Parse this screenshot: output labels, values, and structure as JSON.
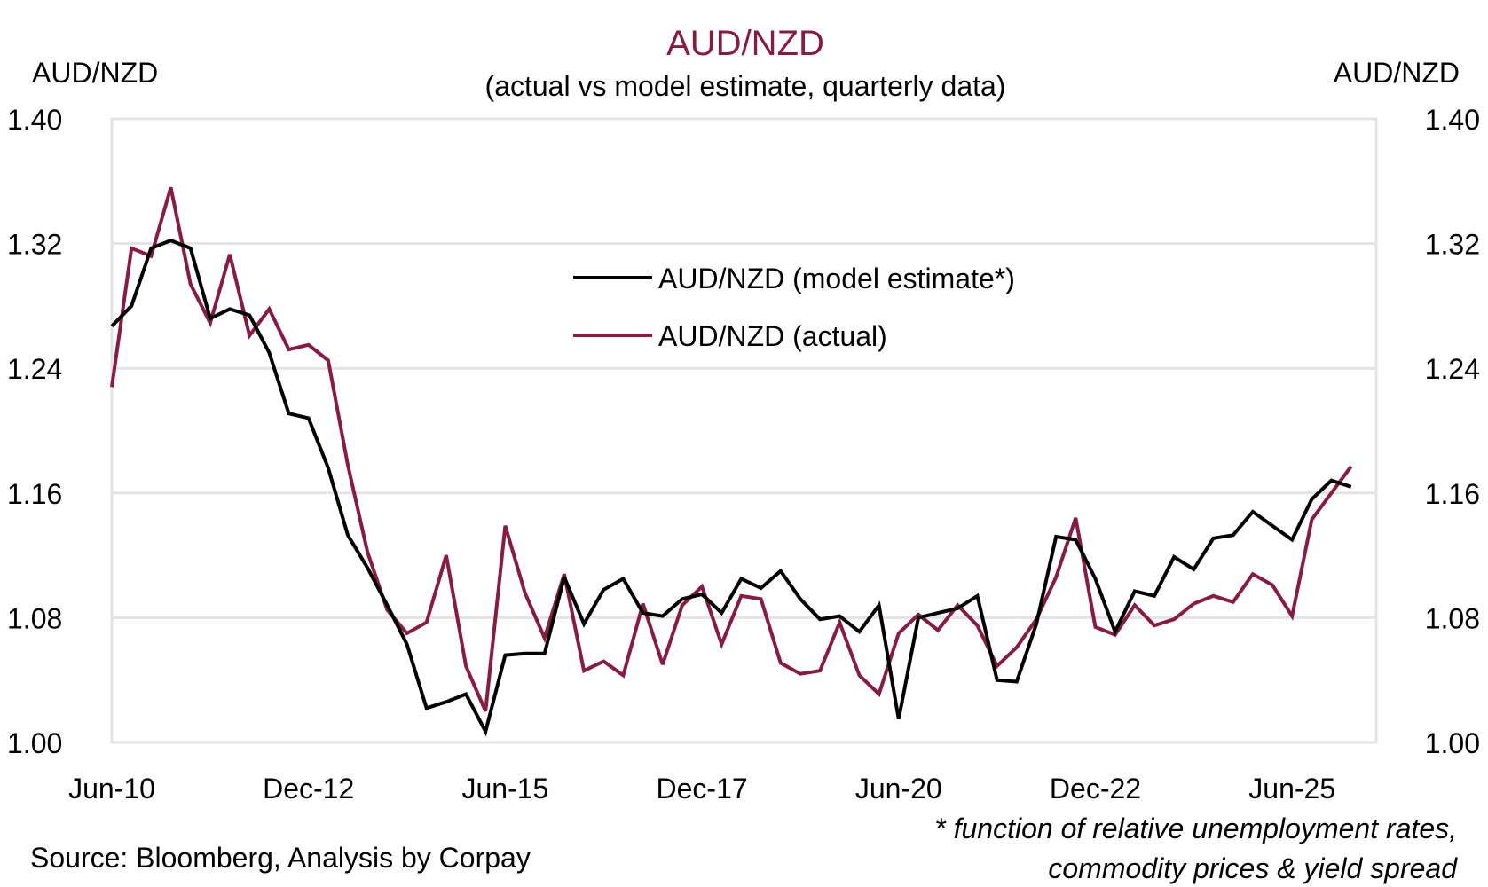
{
  "chart_data": {
    "type": "line",
    "title": "AUD/NZD",
    "subtitle": "(actual vs model estimate, quarterly data)",
    "ylabel_left": "AUD/NZD",
    "ylabel_right": "AUD/NZD",
    "xlabel": "",
    "ylim": [
      1.0,
      1.4
    ],
    "yticks": [
      "1.00",
      "1.08",
      "1.16",
      "1.24",
      "1.32",
      "1.40"
    ],
    "ytick_values": [
      1.0,
      1.08,
      1.16,
      1.24,
      1.32,
      1.4
    ],
    "xtick_labels": [
      "Jun-10",
      "Dec-12",
      "Jun-15",
      "Dec-17",
      "Jun-20",
      "Dec-22",
      "Jun-25"
    ],
    "xtick_indices": [
      0,
      10,
      20,
      30,
      40,
      50,
      60
    ],
    "x_start": "Jun-10",
    "x_frequency": "quarterly",
    "x_count": 64,
    "grid": true,
    "legend_position": "upper-center",
    "series": [
      {
        "name": "AUD/NZD (model estimate*)",
        "color": "#000000",
        "values": [
          1.267,
          1.28,
          1.317,
          1.322,
          1.317,
          1.272,
          1.278,
          1.274,
          1.25,
          1.211,
          1.208,
          1.176,
          1.133,
          1.112,
          1.088,
          1.063,
          1.022,
          1.026,
          1.031,
          1.007,
          1.056,
          1.057,
          1.057,
          1.106,
          1.076,
          1.098,
          1.105,
          1.083,
          1.081,
          1.092,
          1.095,
          1.083,
          1.105,
          1.099,
          1.11,
          1.092,
          1.079,
          1.081,
          1.071,
          1.088,
          1.015,
          1.08,
          1.083,
          1.086,
          1.094,
          1.04,
          1.039,
          1.076,
          1.132,
          1.13,
          1.105,
          1.071,
          1.097,
          1.094,
          1.119,
          1.111,
          1.131,
          1.133,
          1.148,
          1.139,
          1.13,
          1.156,
          1.168,
          1.164
        ]
      },
      {
        "name": "AUD/NZD (actual)",
        "color": "#8B1A42",
        "values": [
          1.228,
          1.317,
          1.312,
          1.356,
          1.294,
          1.269,
          1.313,
          1.261,
          1.278,
          1.252,
          1.255,
          1.245,
          1.178,
          1.122,
          1.085,
          1.07,
          1.077,
          1.12,
          1.049,
          1.02,
          1.139,
          1.096,
          1.067,
          1.108,
          1.046,
          1.052,
          1.043,
          1.089,
          1.05,
          1.088,
          1.1,
          1.063,
          1.094,
          1.092,
          1.051,
          1.044,
          1.046,
          1.077,
          1.043,
          1.031,
          1.07,
          1.082,
          1.072,
          1.088,
          1.075,
          1.049,
          1.061,
          1.079,
          1.106,
          1.144,
          1.074,
          1.069,
          1.088,
          1.075,
          1.079,
          1.089,
          1.094,
          1.09,
          1.108,
          1.101,
          1.081,
          1.143,
          1.16,
          1.177
        ]
      }
    ],
    "source": "Source: Bloomberg, Analysis by Corpay",
    "footnote_line1": "* function of relative unemployment rates,",
    "footnote_line2": "commodity prices & yield spread",
    "title_color": "#8B1A42",
    "grid_color": "#E3E3E3"
  }
}
